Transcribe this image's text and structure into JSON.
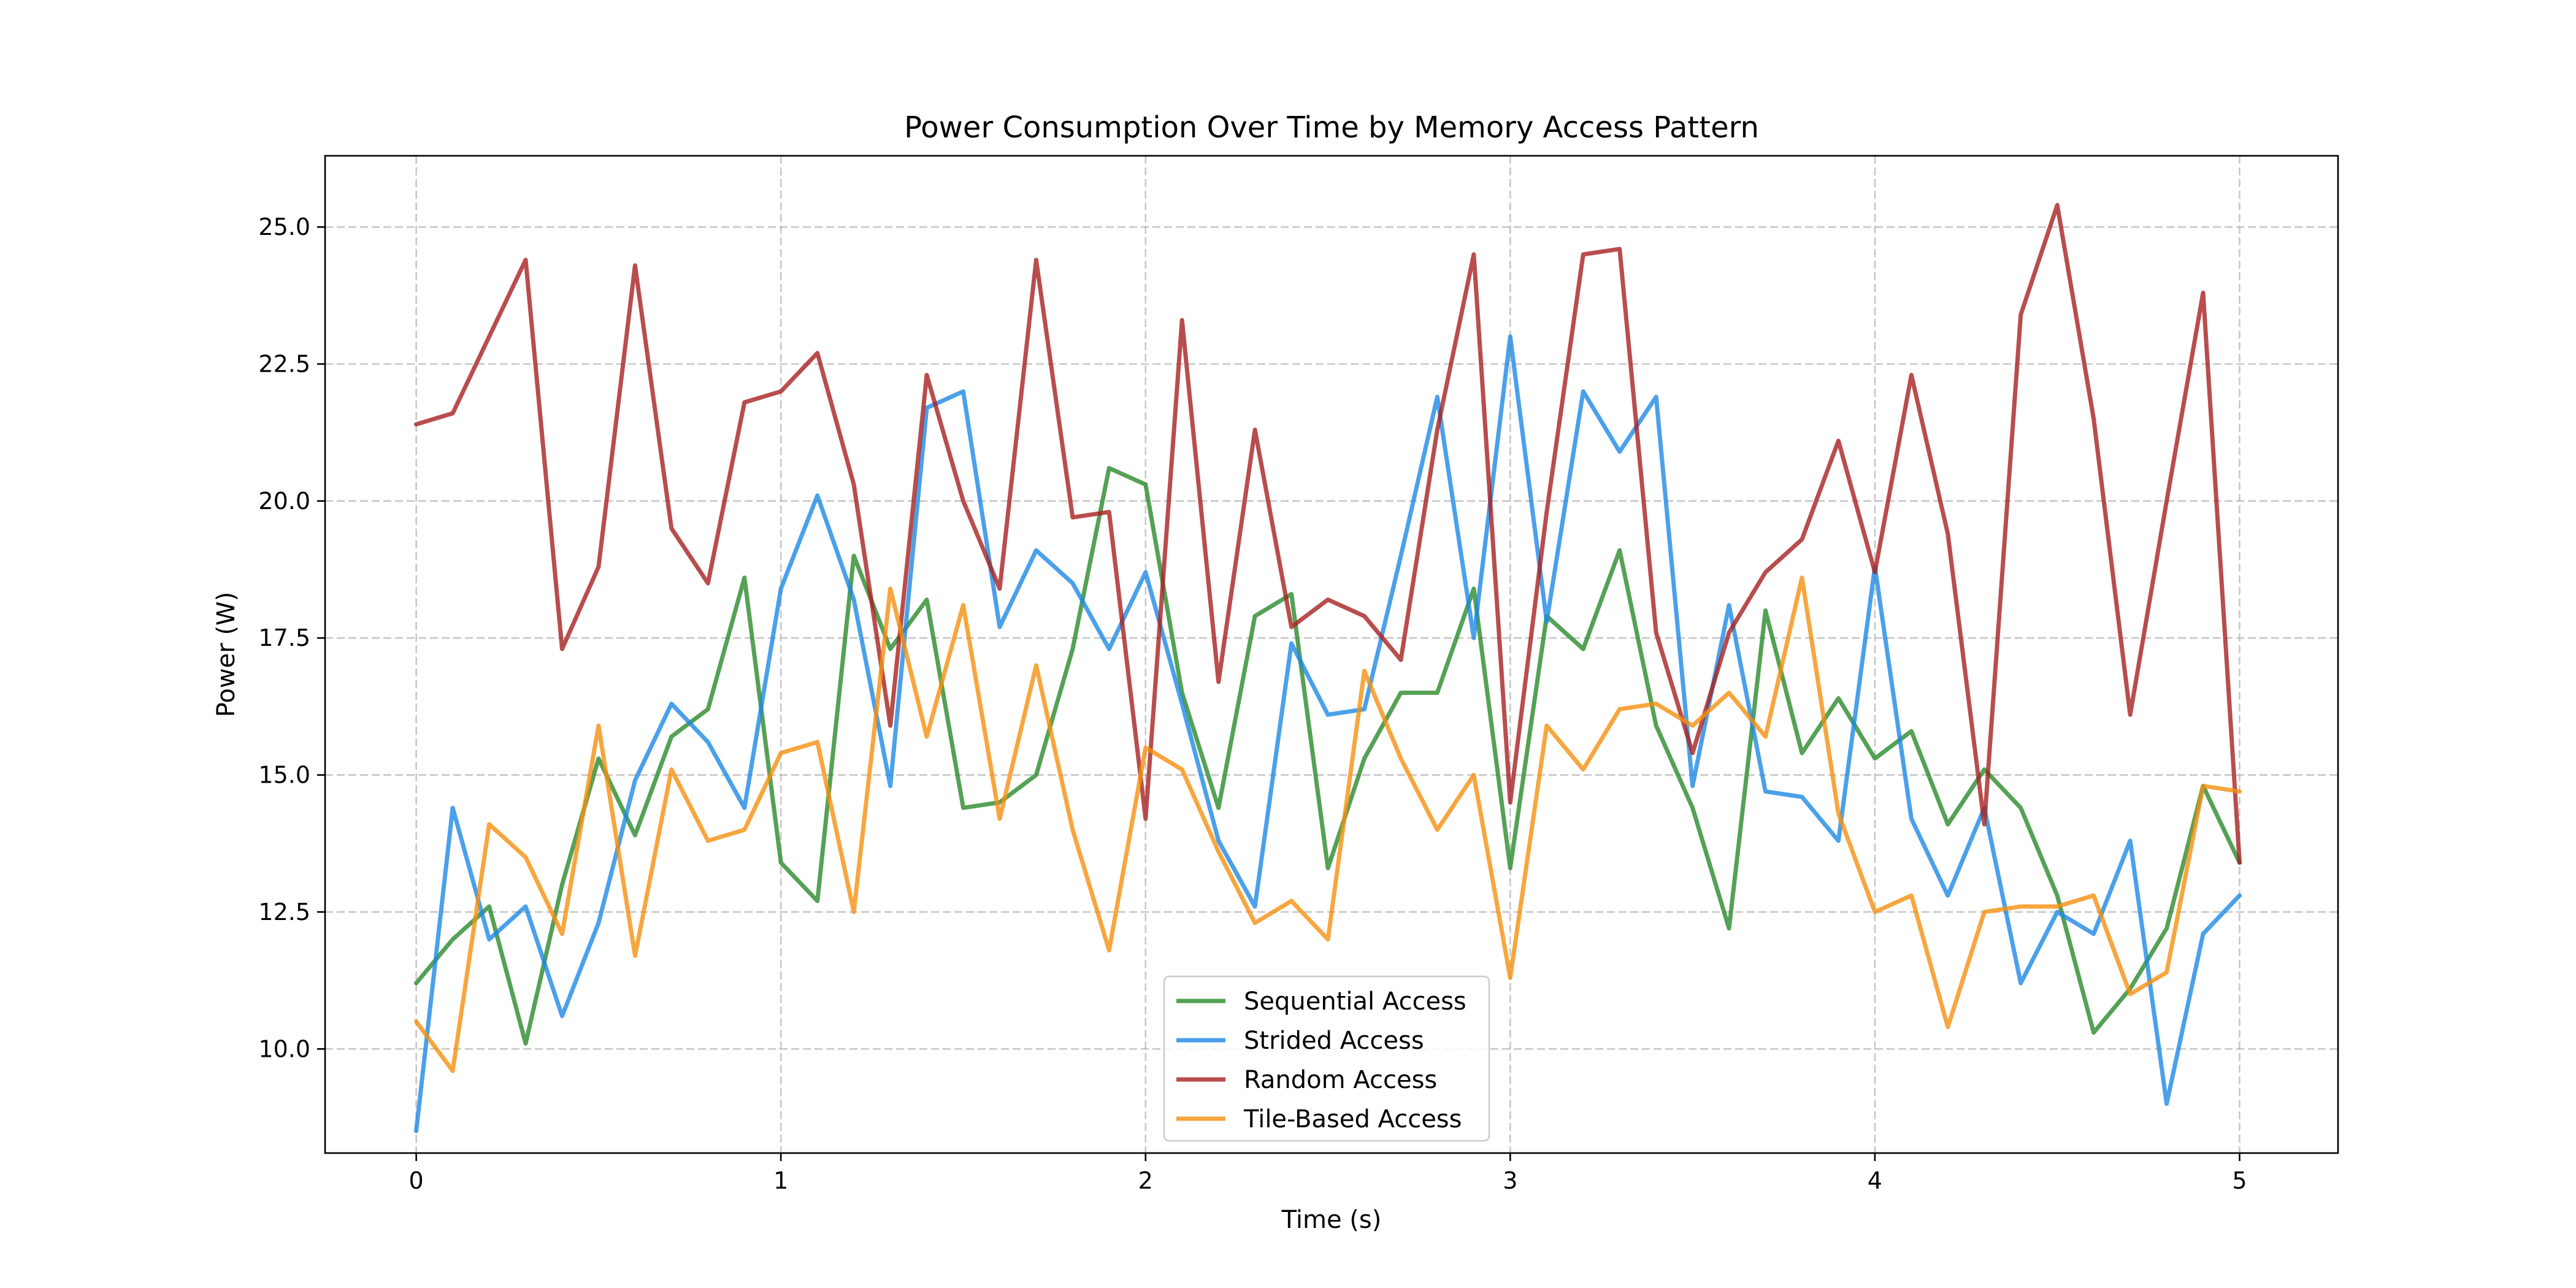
{
  "chart_data": {
    "type": "line",
    "title": "Power Consumption Over Time by Memory Access Pattern",
    "xlabel": "Time (s)",
    "ylabel": "Power (W)",
    "xlim": [
      -0.25,
      5.27
    ],
    "ylim": [
      8.1,
      26.3
    ],
    "xticks": [
      0,
      1,
      2,
      3,
      4,
      5
    ],
    "xtick_labels": [
      "0",
      "1",
      "2",
      "3",
      "4",
      "5"
    ],
    "yticks": [
      10.0,
      12.5,
      15.0,
      17.5,
      20.0,
      22.5,
      25.0
    ],
    "ytick_labels": [
      "10.0",
      "12.5",
      "15.0",
      "17.5",
      "20.0",
      "22.5",
      "25.0"
    ],
    "grid": true,
    "legend_position": "lower-center",
    "x": [
      0,
      0.1,
      0.2,
      0.3,
      0.4,
      0.5,
      0.6,
      0.7,
      0.8,
      0.9,
      1.0,
      1.1,
      1.2,
      1.3,
      1.4,
      1.5,
      1.6,
      1.7,
      1.8,
      1.9,
      2.0,
      2.1,
      2.2,
      2.3,
      2.4,
      2.5,
      2.6,
      2.7,
      2.8,
      2.9,
      3.0,
      3.1,
      3.2,
      3.3,
      3.4,
      3.5,
      3.6,
      3.7,
      3.8,
      3.9,
      4.0,
      4.1,
      4.2,
      4.3,
      4.4,
      4.5,
      4.6,
      4.7,
      4.8,
      4.9,
      5.0
    ],
    "series": [
      {
        "name": "Sequential Access",
        "color": "#2a8a2a",
        "values": [
          11.2,
          12.0,
          12.6,
          10.1,
          13.0,
          15.3,
          13.9,
          15.7,
          16.2,
          18.6,
          13.4,
          12.7,
          19.0,
          17.3,
          18.2,
          14.4,
          14.5,
          15.0,
          17.3,
          20.6,
          20.3,
          16.5,
          14.4,
          17.9,
          18.3,
          13.3,
          15.3,
          16.5,
          16.5,
          18.4,
          13.3,
          17.9,
          17.3,
          19.1,
          15.9,
          14.4,
          12.2,
          18.0,
          15.4,
          16.4,
          15.3,
          15.8,
          14.1,
          15.1,
          14.4,
          12.8,
          10.3,
          11.1,
          12.2,
          14.8,
          13.4
        ]
      },
      {
        "name": "Strided Access",
        "color": "#1e88e5",
        "values": [
          8.5,
          14.4,
          12.0,
          12.6,
          10.6,
          12.3,
          14.9,
          16.3,
          15.6,
          14.4,
          18.4,
          20.1,
          18.2,
          14.8,
          21.7,
          22.0,
          17.7,
          19.1,
          18.5,
          17.3,
          18.7,
          16.3,
          13.8,
          12.6,
          17.4,
          16.1,
          16.2,
          19.0,
          21.9,
          17.5,
          23.0,
          17.8,
          22.0,
          20.9,
          21.9,
          14.8,
          18.1,
          14.7,
          14.6,
          13.8,
          18.8,
          14.2,
          12.8,
          14.4,
          11.2,
          12.5,
          12.1,
          13.8,
          9.0,
          12.1,
          12.8
        ]
      },
      {
        "name": "Random Access",
        "color": "#a82020",
        "values": [
          21.4,
          21.6,
          23.0,
          24.4,
          17.3,
          18.8,
          24.3,
          19.5,
          18.5,
          21.8,
          22.0,
          22.7,
          20.3,
          15.9,
          22.3,
          20.0,
          18.4,
          24.4,
          19.7,
          19.8,
          14.2,
          23.3,
          16.7,
          21.3,
          17.7,
          18.2,
          17.9,
          17.1,
          21.3,
          24.5,
          14.5,
          19.8,
          24.5,
          24.6,
          17.6,
          15.4,
          17.6,
          18.7,
          19.3,
          21.1,
          18.7,
          22.3,
          19.4,
          14.1,
          23.4,
          25.4,
          21.5,
          16.1,
          20.0,
          23.8,
          13.4
        ]
      },
      {
        "name": "Tile-Based Access",
        "color": "#f5900f",
        "values": [
          10.5,
          9.6,
          14.1,
          13.5,
          12.1,
          15.9,
          11.7,
          15.1,
          13.8,
          14.0,
          15.4,
          15.6,
          12.5,
          18.4,
          15.7,
          18.1,
          14.2,
          17.0,
          14.0,
          11.8,
          15.5,
          15.1,
          13.6,
          12.3,
          12.7,
          12.0,
          16.9,
          15.3,
          14.0,
          15.0,
          11.3,
          15.9,
          15.1,
          16.2,
          16.3,
          15.9,
          16.5,
          15.7,
          18.6,
          14.3,
          12.5,
          12.8,
          10.4,
          12.5,
          12.6,
          12.6,
          12.8,
          11.0,
          11.4,
          14.8,
          14.7
        ]
      }
    ]
  }
}
